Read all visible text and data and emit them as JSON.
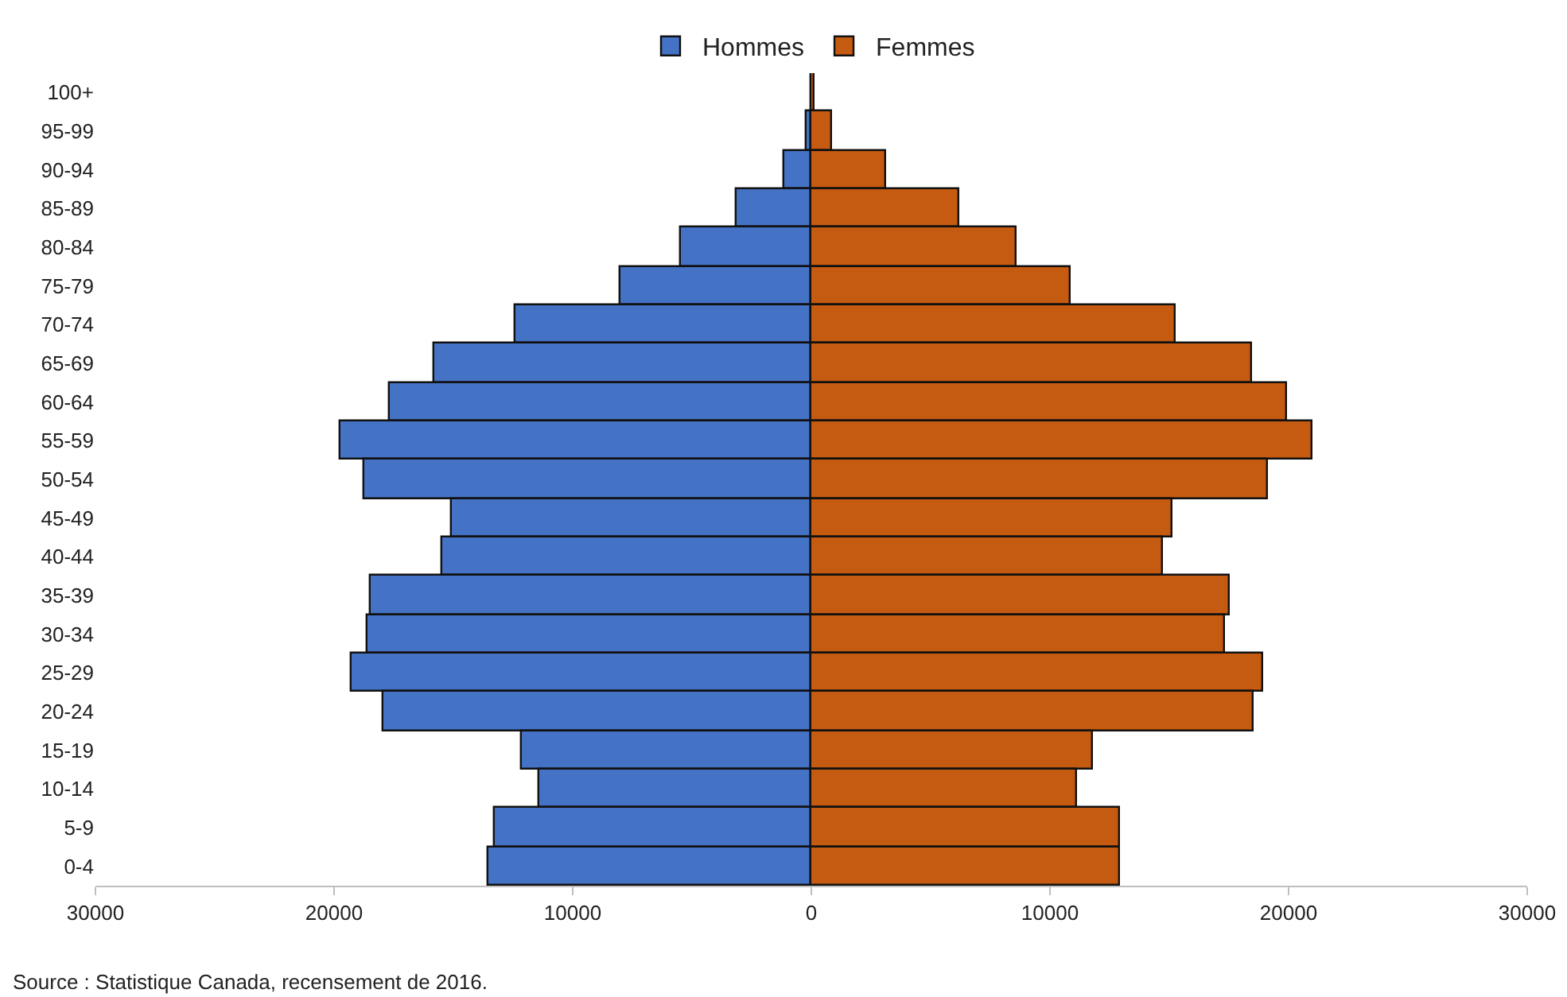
{
  "chart_data": {
    "type": "bar",
    "orientation": "horizontal",
    "stacked": true,
    "categories": [
      "100+",
      "95-99",
      "90-94",
      "85-89",
      "80-84",
      "75-79",
      "70-74",
      "65-69",
      "60-64",
      "55-59",
      "50-54",
      "45-49",
      "40-44",
      "35-39",
      "30-34",
      "25-29",
      "20-24",
      "15-19",
      "10-14",
      "5-9",
      "0-4"
    ],
    "series": [
      {
        "name": "Hommes",
        "color": "#4472c4",
        "values": [
          null,
          -200,
          -1150,
          -3130,
          -5450,
          -8030,
          -12400,
          -15800,
          -17650,
          -19750,
          -18750,
          -15100,
          -15450,
          -18500,
          -18600,
          -19300,
          -17950,
          -12150,
          -11400,
          -13250,
          -13550
        ]
      },
      {
        "name": "Femmes",
        "color": "#c55a11",
        "values": [
          100,
          870,
          3100,
          6200,
          8600,
          10850,
          15250,
          18450,
          19900,
          21000,
          19150,
          15100,
          14750,
          17550,
          17350,
          18950,
          18550,
          11800,
          11100,
          12950,
          12900
        ]
      }
    ],
    "xlim": [
      -30000,
      30000
    ],
    "xticks": [
      {
        "value": -30000,
        "label": "30000"
      },
      {
        "value": -20000,
        "label": "20000"
      },
      {
        "value": -10000,
        "label": "10000"
      },
      0,
      10000,
      20000,
      30000
    ],
    "grid": false,
    "legend": "top",
    "annotations": [
      "Source : Statistique Canada, recensement de 2016."
    ]
  }
}
